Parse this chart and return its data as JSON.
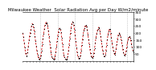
{
  "title": "Milwaukee Weather  Solar Radiation Avg per Day W/m2/minute",
  "bg_color": "#ffffff",
  "line_color": "#cc0000",
  "dot_color": "#000000",
  "grid_color": "#999999",
  "ylim": [
    0,
    350
  ],
  "yticks": [
    50,
    100,
    150,
    200,
    250,
    300,
    350
  ],
  "ytick_labels": [
    "50",
    "100",
    "150",
    "200",
    "250",
    "300",
    "350"
  ],
  "values": [
    200,
    170,
    130,
    95,
    55,
    40,
    30,
    60,
    100,
    145,
    175,
    200,
    220,
    250,
    265,
    260,
    240,
    210,
    175,
    140,
    105,
    70,
    45,
    25,
    15,
    10,
    20,
    40,
    75,
    120,
    160,
    195,
    225,
    255,
    270,
    275,
    270,
    250,
    215,
    175,
    135,
    95,
    60,
    35,
    20,
    15,
    10,
    15,
    30,
    60,
    100,
    140,
    175,
    205,
    225,
    235,
    230,
    205,
    165,
    120,
    80,
    45,
    25,
    15,
    10,
    8,
    15,
    35,
    70,
    115,
    160,
    200,
    235,
    265,
    280,
    275,
    255,
    220,
    180,
    140,
    95,
    60,
    35,
    20,
    15,
    20,
    40,
    75,
    115,
    155,
    190,
    215,
    235,
    250,
    255,
    245,
    220,
    190,
    155,
    120,
    85,
    55,
    35,
    25,
    20,
    30,
    55,
    90,
    130,
    165,
    195,
    215,
    230,
    240,
    235,
    210,
    175,
    140,
    105,
    75,
    50,
    35,
    30,
    45,
    75,
    115,
    155,
    185,
    210,
    225,
    225,
    200,
    165,
    130,
    100,
    75,
    55,
    45,
    55,
    85,
    120,
    155,
    180,
    195,
    200,
    190,
    170,
    145,
    115,
    85,
    60,
    45,
    40,
    50,
    70,
    100,
    130,
    155,
    170,
    175,
    165,
    145,
    120,
    95,
    75,
    60
  ],
  "vline_positions": [
    26,
    52,
    78,
    104,
    130,
    156
  ],
  "vline_color": "#aaaaaa",
  "title_fontsize": 4.0,
  "tick_fontsize": 3.2,
  "linewidth": 0.6,
  "markersize": 0.7
}
